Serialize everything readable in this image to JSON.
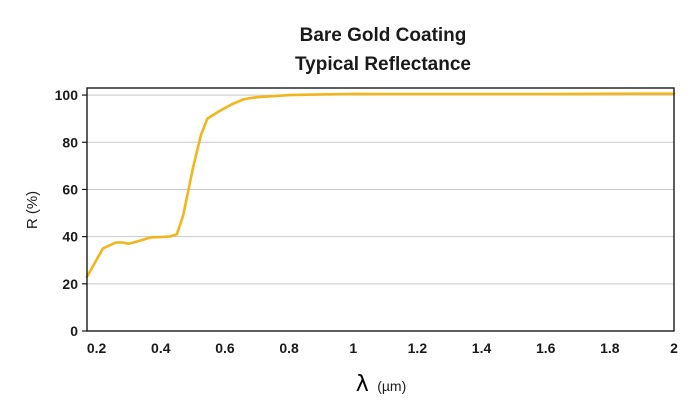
{
  "chart_data": {
    "type": "line",
    "title": [
      "Bare Gold Coating",
      "Typical Reflectance"
    ],
    "xlabel_symbol": "λ",
    "xlabel_unit": "(µm)",
    "ylabel": "R (%)",
    "xlim": [
      0.17,
      2.0
    ],
    "ylim": [
      0,
      103
    ],
    "grid": "horizontal",
    "x_ticks": [
      0.2,
      0.4,
      0.6,
      0.8,
      1.0,
      1.2,
      1.4,
      1.6,
      1.8,
      2.0
    ],
    "x_tick_labels": [
      "0.2",
      "0.4",
      "0.6",
      "0.8",
      "1",
      "1.2",
      "1.4",
      "1.6",
      "1.8",
      "2"
    ],
    "y_ticks": [
      0,
      20,
      40,
      60,
      80,
      100
    ],
    "y_tick_labels": [
      "0",
      "20",
      "40",
      "60",
      "80",
      "100"
    ],
    "series": [
      {
        "name": "Bare Gold",
        "color": "#f2b51c",
        "x": [
          0.17,
          0.22,
          0.26,
          0.28,
          0.3,
          0.34,
          0.37,
          0.4,
          0.43,
          0.45,
          0.47,
          0.5,
          0.525,
          0.545,
          0.58,
          0.62,
          0.66,
          0.7,
          0.8,
          0.9,
          1.0,
          1.1,
          1.3,
          1.6,
          1.9,
          2.0
        ],
        "values": [
          23,
          35,
          37.5,
          37.5,
          37,
          38.5,
          39.7,
          39.8,
          40.1,
          41,
          49,
          69,
          83,
          90,
          93,
          96,
          98.3,
          99.1,
          100,
          100.3,
          100.5,
          100.4,
          100.4,
          100.4,
          100.6,
          100.6
        ]
      }
    ]
  }
}
